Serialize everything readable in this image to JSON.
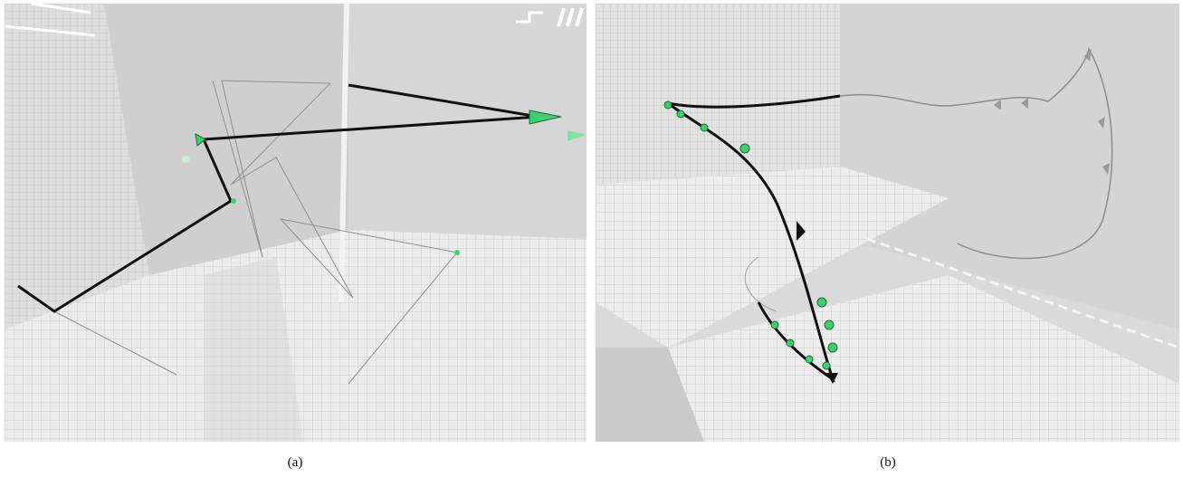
{
  "figure": {
    "panels": [
      {
        "id": "a",
        "caption": "(a)",
        "scene": "3d-voxel-room-with-trajectory"
      },
      {
        "id": "b",
        "caption": "(b)",
        "scene": "3d-voxel-room-with-trajectory"
      }
    ],
    "colors": {
      "background": "#ffffff",
      "scene_floor": "#e8e8e8",
      "scene_wall": "#d2d2d2",
      "grid_line": "#c4c4c4",
      "trajectory_main": "#111111",
      "trajectory_faint": "#9a9a9a",
      "marker": "#3ecf6e"
    }
  }
}
